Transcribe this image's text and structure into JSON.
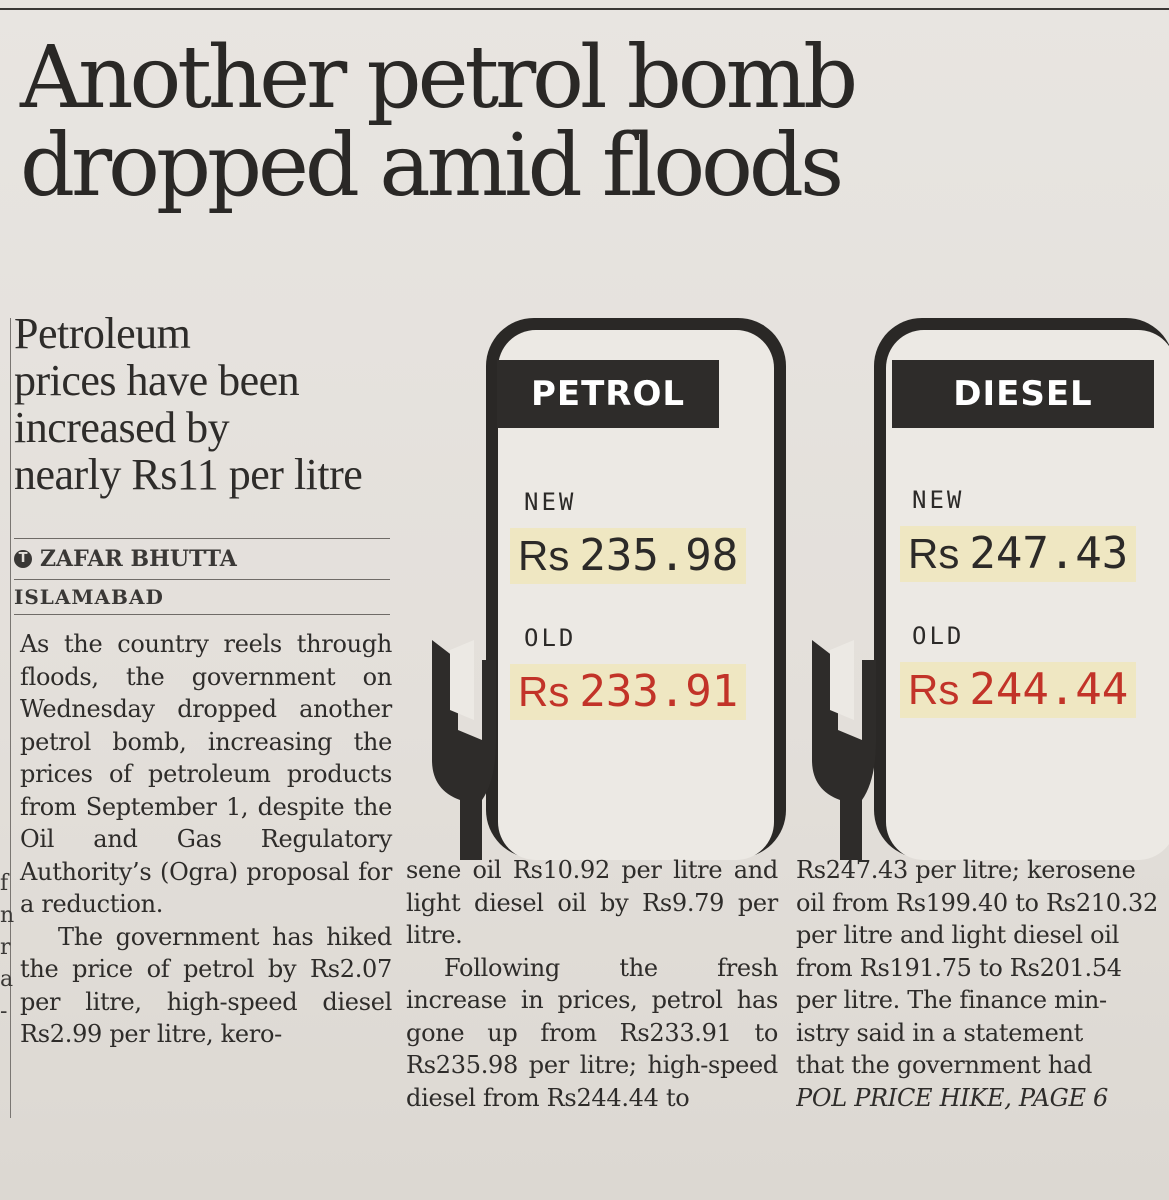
{
  "headline": [
    "Another petrol bomb",
    "dropped amid floods"
  ],
  "deck": [
    "Petroleum",
    "prices have been",
    "increased by",
    "nearly Rs11 per litre"
  ],
  "byline": {
    "author": "ZAFAR BHUTTA",
    "dateline": "ISLAMABAD",
    "logo": "T"
  },
  "graphic": {
    "petrol": {
      "label": "PETROL",
      "new_label": "NEW",
      "new_currency": "Rs",
      "new_price": "235.98",
      "old_label": "OLD",
      "old_currency": "Rs",
      "old_price": "233.91"
    },
    "diesel": {
      "label": "DIESEL",
      "new_label": "NEW",
      "new_currency": "Rs",
      "new_price": "247.43",
      "old_label": "OLD",
      "old_currency": "Rs",
      "old_price": "244.44"
    }
  },
  "body": {
    "col1": [
      "As the country reels through floods, the government on Wednesday dropped another petrol bomb, increasing the prices of petroleum products from September 1, despite the Oil and Gas Regulatory Authority’s (Ogra) proposal for a reduction.",
      "The government has hiked the price of petrol by Rs2.07 per litre, high-speed diesel Rs2.99 per litre, kero-"
    ],
    "col2": [
      "sene oil Rs10.92 per litre and light diesel oil by Rs9.79 per litre.",
      "Following the fresh increase in prices, petrol has gone up from Rs233.91 to Rs235.98 per litre; high-speed diesel from Rs244.44 to"
    ],
    "col3_lines": [
      "Rs247.43 per litre; kerosene",
      "oil from Rs199.40 to Rs210.32",
      "per litre and light diesel oil",
      "from Rs191.75 to Rs201.54",
      "per litre. The finance min-",
      "istry said in a statement",
      "that the government had"
    ],
    "jump": "POL PRICE HIKE, PAGE 6"
  },
  "left_edge_fragments": [
    "f",
    "n",
    "r",
    "a",
    "-"
  ],
  "colors": {
    "old_price": "#c23328",
    "price_box": "#efe7c2",
    "ink": "#2c2a28"
  }
}
